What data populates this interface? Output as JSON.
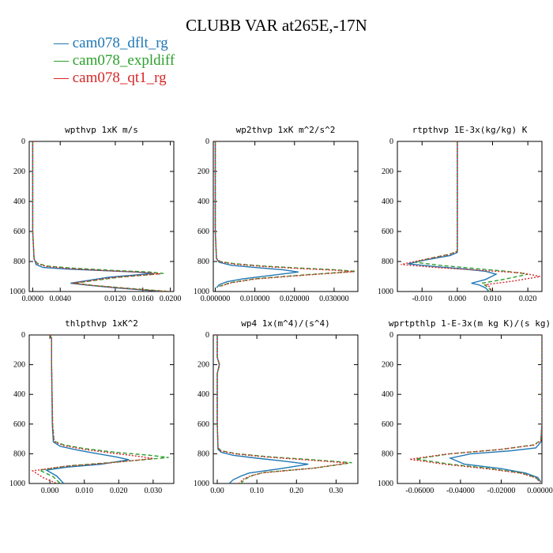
{
  "title": "CLUBB VAR at265E,-17N",
  "legend": [
    {
      "name": "cam078_dflt_rg",
      "color": "#1f77b4",
      "dash": "solid"
    },
    {
      "name": "cam078_expldiff",
      "color": "#2ca02c",
      "dash": "dashed"
    },
    {
      "name": "cam078_qt1_rg",
      "color": "#d62728",
      "dash": "dotted"
    }
  ],
  "chart_data": [
    {
      "type": "line",
      "title": "wpthvp   1xK m/s",
      "ylim": [
        1000,
        0
      ],
      "yticks": [
        0,
        200,
        400,
        600,
        800,
        1000
      ],
      "xlim": [
        -0.0005,
        0.0205
      ],
      "xticks": [
        0.0,
        0.004,
        0.012,
        0.016,
        0.02
      ],
      "xticklabels": [
        "0.0000",
        "0.0040",
        "0.0120",
        "0.0160",
        "0.0200"
      ],
      "series": [
        {
          "name": "cam078_dflt_rg",
          "x": [
            0.0,
            0.0,
            0.0,
            0.0002,
            0.0005,
            0.0015,
            0.005,
            0.01,
            0.015,
            0.0175,
            0.011,
            0.0055,
            0.0085,
            0.012,
            0.016,
            0.019
          ],
          "y": [
            0,
            200,
            600,
            780,
            820,
            840,
            850,
            860,
            870,
            880,
            905,
            945,
            960,
            975,
            990,
            1000
          ]
        },
        {
          "name": "cam078_expldiff",
          "x": [
            0.0,
            0.0,
            0.0,
            0.0002,
            0.0006,
            0.002,
            0.006,
            0.012,
            0.017,
            0.019,
            0.0125,
            0.006,
            0.009,
            0.013,
            0.017,
            0.02
          ],
          "y": [
            0,
            200,
            600,
            780,
            810,
            830,
            845,
            860,
            870,
            880,
            905,
            945,
            960,
            975,
            990,
            1000
          ]
        },
        {
          "name": "cam078_qt1_rg",
          "x": [
            0.0,
            0.0,
            0.0,
            0.0002,
            0.0006,
            0.0018,
            0.0055,
            0.011,
            0.016,
            0.0185,
            0.012,
            0.0058,
            0.0088,
            0.0125,
            0.0165,
            0.0198
          ],
          "y": [
            0,
            200,
            600,
            780,
            812,
            832,
            848,
            862,
            872,
            882,
            905,
            945,
            960,
            975,
            990,
            1000
          ]
        }
      ]
    },
    {
      "type": "line",
      "title": "wp2thvp   1xK m^2/s^2",
      "ylim": [
        1000,
        0
      ],
      "yticks": [
        0,
        200,
        400,
        600,
        800,
        1000
      ],
      "xlim": [
        -0.0005,
        0.036
      ],
      "xticks": [
        0.0,
        0.01,
        0.02,
        0.03
      ],
      "xticklabels": [
        "0.000000",
        "0.010000",
        "0.020000",
        "0.030000"
      ],
      "series": [
        {
          "name": "cam078_dflt_rg",
          "x": [
            0.0,
            0.0,
            0.0,
            0.0003,
            0.001,
            0.004,
            0.01,
            0.017,
            0.021,
            0.015,
            0.007,
            0.003,
            0.001,
            0.0003
          ],
          "y": [
            0,
            200,
            600,
            780,
            805,
            825,
            840,
            855,
            870,
            890,
            915,
            935,
            955,
            975
          ]
        },
        {
          "name": "cam078_expldiff",
          "x": [
            0.0,
            0.0,
            0.0,
            0.0003,
            0.0012,
            0.005,
            0.012,
            0.022,
            0.03,
            0.0355,
            0.022,
            0.01,
            0.004,
            0.001
          ],
          "y": [
            0,
            200,
            600,
            780,
            800,
            815,
            830,
            845,
            855,
            865,
            890,
            915,
            940,
            965
          ]
        },
        {
          "name": "cam078_qt1_rg",
          "x": [
            0.0,
            0.0,
            0.0,
            0.0003,
            0.0012,
            0.005,
            0.012,
            0.022,
            0.03,
            0.035,
            0.022,
            0.01,
            0.004,
            0.001
          ],
          "y": [
            0,
            200,
            600,
            780,
            802,
            818,
            833,
            848,
            858,
            868,
            892,
            917,
            942,
            967
          ]
        }
      ]
    },
    {
      "type": "line",
      "title": "rtpthvp   1E-3x(kg/kg) K",
      "ylim": [
        1000,
        0
      ],
      "yticks": [
        0,
        200,
        400,
        600,
        800,
        1000
      ],
      "xlim": [
        -0.017,
        0.024
      ],
      "xticks": [
        -0.01,
        0.0,
        0.01,
        0.02
      ],
      "xticklabels": [
        "-0.010",
        "0.000",
        "0.010",
        "0.020"
      ],
      "series": [
        {
          "name": "cam078_dflt_rg",
          "x": [
            0.0,
            0.0,
            0.0,
            0.0,
            -0.002,
            -0.009,
            -0.014,
            -0.006,
            0.002,
            0.008,
            0.011,
            0.008,
            0.004,
            0.006,
            0.008,
            0.009
          ],
          "y": [
            0,
            200,
            600,
            740,
            760,
            790,
            815,
            835,
            850,
            865,
            885,
            920,
            945,
            955,
            975,
            1000
          ]
        },
        {
          "name": "cam078_expldiff",
          "x": [
            0.0,
            0.0,
            0.0,
            0.0,
            -0.002,
            -0.008,
            -0.012,
            -0.005,
            0.004,
            0.014,
            0.02,
            0.014,
            0.007,
            0.008,
            0.009,
            0.01
          ],
          "y": [
            0,
            200,
            600,
            730,
            750,
            780,
            805,
            825,
            845,
            865,
            885,
            915,
            945,
            960,
            980,
            1000
          ]
        },
        {
          "name": "cam078_qt1_rg",
          "x": [
            0.0,
            0.0,
            0.0,
            0.0,
            -0.0025,
            -0.01,
            -0.016,
            -0.006,
            0.006,
            0.018,
            0.0235,
            0.016,
            0.008,
            0.009,
            0.0095,
            0.01
          ],
          "y": [
            0,
            200,
            600,
            735,
            755,
            790,
            820,
            840,
            858,
            875,
            900,
            930,
            955,
            965,
            985,
            1000
          ]
        }
      ]
    },
    {
      "type": "line",
      "title": "thlpthvp   1xK^2",
      "ylim": [
        1000,
        0
      ],
      "yticks": [
        0,
        200,
        400,
        600,
        800,
        1000
      ],
      "xlim": [
        -0.006,
        0.036
      ],
      "xticks": [
        0.0,
        0.01,
        0.02,
        0.03
      ],
      "xticklabels": [
        "0.000",
        "0.010",
        "0.020",
        "0.030"
      ],
      "series": [
        {
          "name": "cam078_dflt_rg",
          "x": [
            0.0,
            0.0005,
            0.0005,
            0.0007,
            0.001,
            0.003,
            0.008,
            0.014,
            0.019,
            0.023,
            0.015,
            0.005,
            -0.001,
            0.002,
            0.004
          ],
          "y": [
            0,
            20,
            200,
            600,
            720,
            750,
            775,
            800,
            820,
            840,
            870,
            890,
            910,
            950,
            1000
          ]
        },
        {
          "name": "cam078_expldiff",
          "x": [
            0.0,
            0.0005,
            0.0005,
            0.0008,
            0.0012,
            0.004,
            0.01,
            0.019,
            0.029,
            0.0345,
            0.02,
            0.006,
            -0.003,
            0.001,
            0.003
          ],
          "y": [
            0,
            20,
            200,
            600,
            715,
            740,
            765,
            790,
            810,
            825,
            855,
            880,
            910,
            955,
            1000
          ]
        },
        {
          "name": "cam078_qt1_rg",
          "x": [
            0.0,
            0.0005,
            0.0005,
            0.0008,
            0.0012,
            0.004,
            0.01,
            0.018,
            0.025,
            0.03,
            0.017,
            0.004,
            -0.005,
            -0.002,
            0.002
          ],
          "y": [
            0,
            20,
            200,
            600,
            718,
            745,
            770,
            795,
            815,
            832,
            862,
            885,
            915,
            960,
            1000
          ]
        }
      ]
    },
    {
      "type": "line",
      "title": "wp4   1x(m^4)/(s^4)",
      "ylim": [
        1000,
        0
      ],
      "yticks": [
        0,
        200,
        400,
        600,
        800,
        1000
      ],
      "xlim": [
        -0.01,
        0.355
      ],
      "xticks": [
        0.0,
        0.1,
        0.2,
        0.3
      ],
      "xticklabels": [
        "0.00",
        "0.10",
        "0.20",
        "0.30"
      ],
      "series": [
        {
          "name": "cam078_dflt_rg",
          "x": [
            0.0,
            0.0,
            0.005,
            0.0,
            0.0,
            0.002,
            0.01,
            0.04,
            0.1,
            0.17,
            0.23,
            0.16,
            0.08,
            0.06,
            0.04,
            0.03
          ],
          "y": [
            0,
            150,
            200,
            260,
            600,
            770,
            790,
            810,
            830,
            850,
            870,
            900,
            930,
            950,
            975,
            1000
          ]
        },
        {
          "name": "cam078_expldiff",
          "x": [
            0.0,
            0.0,
            0.006,
            0.0,
            0.0,
            0.002,
            0.01,
            0.05,
            0.13,
            0.24,
            0.34,
            0.25,
            0.12,
            0.09,
            0.07,
            0.06
          ],
          "y": [
            0,
            150,
            200,
            260,
            600,
            760,
            780,
            800,
            820,
            840,
            860,
            895,
            925,
            945,
            970,
            1000
          ]
        },
        {
          "name": "cam078_qt1_rg",
          "x": [
            0.0,
            0.0,
            0.006,
            0.0,
            0.0,
            0.002,
            0.01,
            0.05,
            0.125,
            0.23,
            0.33,
            0.24,
            0.115,
            0.085,
            0.065,
            0.055
          ],
          "y": [
            0,
            150,
            200,
            260,
            600,
            762,
            782,
            802,
            822,
            842,
            862,
            898,
            928,
            948,
            972,
            1000
          ]
        }
      ]
    },
    {
      "type": "line",
      "title": "wprtpthlp   1-E-3x(m kg K)/(s kg)",
      "ylim": [
        1000,
        0
      ],
      "yticks": [
        0,
        200,
        400,
        600,
        800,
        1000
      ],
      "xlim": [
        -0.071,
        0.0
      ],
      "xticks": [
        -0.06,
        -0.04,
        -0.02,
        0.0
      ],
      "xticklabels": [
        "-0.06000",
        "-0.04000",
        "-0.02000",
        "0.000000"
      ],
      "series": [
        {
          "name": "cam078_dflt_rg",
          "x": [
            0.0,
            0.0,
            0.0,
            -0.0005,
            -0.003,
            -0.015,
            -0.035,
            -0.045,
            -0.038,
            -0.02,
            -0.008,
            -0.002,
            -0.0005
          ],
          "y": [
            0,
            200,
            600,
            720,
            760,
            780,
            800,
            830,
            870,
            900,
            930,
            960,
            990
          ]
        },
        {
          "name": "cam078_expldiff",
          "x": [
            0.0,
            0.0,
            0.0,
            -0.0005,
            -0.004,
            -0.02,
            -0.045,
            -0.062,
            -0.045,
            -0.025,
            -0.01,
            -0.003,
            -0.0008
          ],
          "y": [
            0,
            200,
            600,
            710,
            740,
            770,
            800,
            835,
            870,
            900,
            930,
            960,
            990
          ]
        },
        {
          "name": "cam078_qt1_rg",
          "x": [
            0.0,
            0.0,
            0.0,
            -0.0005,
            -0.004,
            -0.021,
            -0.047,
            -0.065,
            -0.047,
            -0.026,
            -0.01,
            -0.003,
            -0.0008
          ],
          "y": [
            0,
            200,
            600,
            712,
            742,
            772,
            802,
            837,
            872,
            902,
            932,
            962,
            992
          ]
        }
      ]
    }
  ]
}
